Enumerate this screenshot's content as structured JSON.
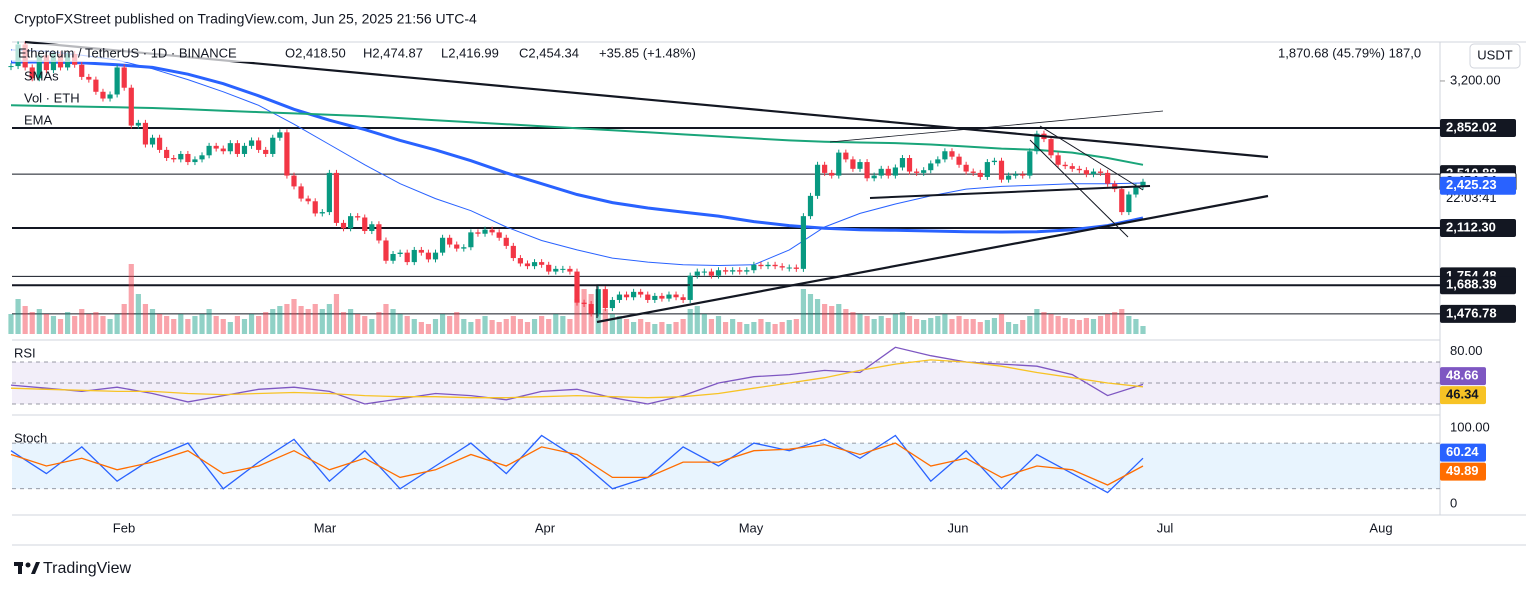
{
  "chart_data": {
    "type": "candlestick",
    "publisher": "CryptoFXStreet published on TradingView.com, Jun 25, 2025 21:56 UTC-4",
    "title": "Ethereum / TetherUS · 1D · BINANCE",
    "header_values": [
      "O2,418.50",
      "H2,474.87",
      "L2,416.99",
      "C2,454.34",
      "+35.85 (+1.48%)"
    ],
    "top_right": "1,870.68 (45.79%) 187,0",
    "currency": "USDT",
    "legend": [
      "SMAs",
      "Vol · ETH",
      "EMA"
    ],
    "months": [
      "Feb",
      "Mar",
      "Apr",
      "May",
      "Jun",
      "Jul",
      "Aug"
    ],
    "brand": "TradingView",
    "up_color": "#089981",
    "down_color": "#f23645",
    "ylim": [
      1328.2,
      3488.2
    ],
    "yticks": [
      {
        "value": 3200,
        "label": "3,200.00"
      }
    ],
    "closes": [
      3310,
      3470,
      3300,
      3220,
      3390,
      3280,
      3400,
      3300,
      3400,
      3320,
      3230,
      3210,
      3120,
      3070,
      3100,
      3300,
      3150,
      2870,
      2890,
      2730,
      2780,
      2690,
      2630,
      2620,
      2660,
      2600,
      2620,
      2650,
      2720,
      2700,
      2680,
      2740,
      2660,
      2720,
      2760,
      2690,
      2660,
      2780,
      2820,
      2500,
      2420,
      2330,
      2310,
      2220,
      2230,
      2520,
      2150,
      2110,
      2200,
      2190,
      2090,
      2140,
      2020,
      1870,
      1920,
      1930,
      1860,
      1950,
      1930,
      1880,
      1930,
      2040,
      1990,
      1960,
      1970,
      2080,
      2070,
      2100,
      2080,
      2040,
      1980,
      1890,
      1850,
      1830,
      1860,
      1840,
      1790,
      1810,
      1810,
      1790,
      1560,
      1550,
      1480,
      1660,
      1520,
      1580,
      1620,
      1600,
      1640,
      1620,
      1580,
      1610,
      1590,
      1620,
      1600,
      1580,
      1760,
      1790,
      1790,
      1760,
      1800,
      1790,
      1800,
      1790,
      1800,
      1840,
      1830,
      1840,
      1830,
      1820,
      1820,
      1810,
      2200,
      2350,
      2580,
      2520,
      2500,
      2670,
      2620,
      2550,
      2600,
      2480,
      2500,
      2550,
      2500,
      2560,
      2630,
      2530,
      2520,
      2540,
      2590,
      2620,
      2680,
      2640,
      2580,
      2530,
      2520,
      2490,
      2600,
      2610,
      2470,
      2500,
      2510,
      2500,
      2680,
      2810,
      2770,
      2650,
      2580,
      2570,
      2550,
      2540,
      2510,
      2530,
      2520,
      2440,
      2400,
      2230,
      2360,
      2418.5,
      2454.34
    ],
    "volume": [
      20,
      35,
      28,
      22,
      25,
      20,
      18,
      15,
      22,
      18,
      25,
      20,
      22,
      18,
      15,
      20,
      30,
      70,
      40,
      30,
      25,
      20,
      18,
      15,
      20,
      15,
      18,
      20,
      25,
      18,
      15,
      12,
      18,
      15,
      20,
      18,
      22,
      25,
      28,
      30,
      35,
      28,
      25,
      30,
      25,
      30,
      40,
      22,
      25,
      20,
      18,
      15,
      22,
      30,
      25,
      20,
      18,
      15,
      12,
      10,
      15,
      20,
      18,
      22,
      15,
      12,
      15,
      18,
      14,
      12,
      15,
      18,
      15,
      12,
      15,
      18,
      15,
      20,
      18,
      15,
      35,
      45,
      40,
      35,
      25,
      20,
      18,
      15,
      12,
      15,
      12,
      10,
      12,
      10,
      12,
      15,
      25,
      28,
      20,
      15,
      18,
      12,
      15,
      12,
      10,
      12,
      15,
      12,
      10,
      12,
      14,
      15,
      45,
      40,
      35,
      30,
      28,
      30,
      25,
      22,
      20,
      18,
      15,
      18,
      16,
      20,
      22,
      18,
      15,
      14,
      16,
      18,
      20,
      15,
      18,
      15,
      15,
      12,
      14,
      16,
      20,
      12,
      10,
      14,
      18,
      25,
      22,
      20,
      18,
      16,
      15,
      14,
      16,
      15,
      18,
      20,
      22,
      25,
      18,
      15,
      8
    ],
    "moving_averages": [
      {
        "color": "#2962ff",
        "width": 1,
        "values": [
          3430,
          3420,
          3390,
          3355,
          3290,
          3210,
          3120,
          3020,
          2880,
          2730,
          2580,
          2440,
          2330,
          2240,
          2120,
          2020,
          1950,
          1890,
          1860,
          1840,
          1835,
          1840,
          1950,
          2120,
          2220,
          2290,
          2350,
          2400,
          2420,
          2430,
          2440,
          2440,
          2445
        ]
      },
      {
        "color": "#2962ff",
        "width": 3,
        "values": [
          3340,
          3340,
          3335,
          3320,
          3300,
          3250,
          3180,
          3090,
          2990,
          2910,
          2840,
          2760,
          2690,
          2610,
          2520,
          2440,
          2360,
          2300,
          2260,
          2230,
          2200,
          2160,
          2130,
          2110,
          2100,
          2095,
          2090,
          2085,
          2083,
          2085,
          2100,
          2130,
          2186
        ]
      },
      {
        "color": "#1aa57a",
        "width": 2,
        "values": [
          3020,
          3015,
          3010,
          3005,
          3000,
          2990,
          2980,
          2970,
          2960,
          2950,
          2940,
          2925,
          2910,
          2895,
          2880,
          2865,
          2850,
          2835,
          2820,
          2805,
          2790,
          2775,
          2760,
          2750,
          2745,
          2740,
          2730,
          2715,
          2700,
          2690,
          2670,
          2630,
          2580
        ]
      }
    ],
    "price_tags": [
      {
        "value": 2852.02,
        "label": "2,852.02",
        "bg": "#131722",
        "fg": "#ffffff",
        "line": 2
      },
      {
        "value": 2510.88,
        "label": "2,510.88",
        "bg": "#131722",
        "fg": "#ffffff",
        "line": 1
      },
      {
        "value": 2454.34,
        "label": "2,454.34",
        "bg": "#ffffff",
        "fg": "#131722",
        "line": 0
      },
      {
        "value": 2425.23,
        "label": "2,425.23",
        "bg": "#2962ff",
        "fg": "#ffffff",
        "line": 0
      },
      {
        "value": 2112.3,
        "label": "2,112.30",
        "bg": "#131722",
        "fg": "#ffffff",
        "line": 2
      },
      {
        "value": 1754.48,
        "label": "1,754.48",
        "bg": "#131722",
        "fg": "#ffffff",
        "line": 1
      },
      {
        "value": 1688.39,
        "label": "1,688.39",
        "bg": "#131722",
        "fg": "#ffffff",
        "line": 2
      },
      {
        "value": 1476.78,
        "label": "1,476.78",
        "bg": "#131722",
        "fg": "#ffffff",
        "line": 1
      }
    ],
    "countdown": "22:03:41",
    "rsi": {
      "label": "RSI",
      "ylim": [
        22.4,
        89
      ],
      "yticks": [
        {
          "value": 80,
          "label": "80.00"
        }
      ],
      "levels": [
        70,
        50,
        30
      ],
      "band": [
        30,
        70
      ],
      "band_color": "#7e57c2",
      "series": [
        {
          "color": "#7e57c2",
          "bg": "#7e57c2",
          "values": [
            48,
            45,
            42,
            46,
            40,
            32,
            38,
            44,
            46,
            42,
            30,
            35,
            40,
            38,
            34,
            42,
            44,
            36,
            30,
            38,
            50,
            56,
            58,
            62,
            60,
            84,
            76,
            70,
            68,
            66,
            58,
            38,
            48.66
          ]
        },
        {
          "color": "#f7c325",
          "bg": "#f7c325",
          "values": [
            45,
            44,
            43,
            42,
            42,
            40,
            39,
            40,
            41,
            40,
            38,
            37,
            37,
            36,
            36,
            37,
            38,
            37,
            36,
            37,
            40,
            45,
            50,
            55,
            62,
            68,
            72,
            70,
            66,
            60,
            55,
            50,
            46.34
          ]
        }
      ]
    },
    "stoch": {
      "label": "Stoch",
      "ylim": [
        -10.5,
        113
      ],
      "yticks": [
        {
          "value": 100,
          "label": "100.00"
        },
        0
      ],
      "levels": [
        80,
        20
      ],
      "band": [
        20,
        80
      ],
      "band_color": "#2196f3",
      "series": [
        {
          "color": "#2962ff",
          "bg": "#2962ff",
          "values": [
            70,
            40,
            75,
            30,
            60,
            80,
            20,
            55,
            85,
            30,
            70,
            20,
            50,
            80,
            40,
            90,
            60,
            20,
            35,
            75,
            50,
            80,
            70,
            85,
            60,
            90,
            30,
            70,
            20,
            65,
            40,
            15,
            60.24
          ]
        },
        {
          "color": "#ff6d00",
          "bg": "#ff6d00",
          "values": [
            65,
            50,
            60,
            45,
            55,
            70,
            40,
            50,
            70,
            45,
            60,
            35,
            45,
            65,
            50,
            75,
            65,
            35,
            35,
            55,
            55,
            70,
            72,
            78,
            65,
            80,
            50,
            60,
            35,
            50,
            45,
            25,
            49.89
          ]
        }
      ]
    }
  }
}
